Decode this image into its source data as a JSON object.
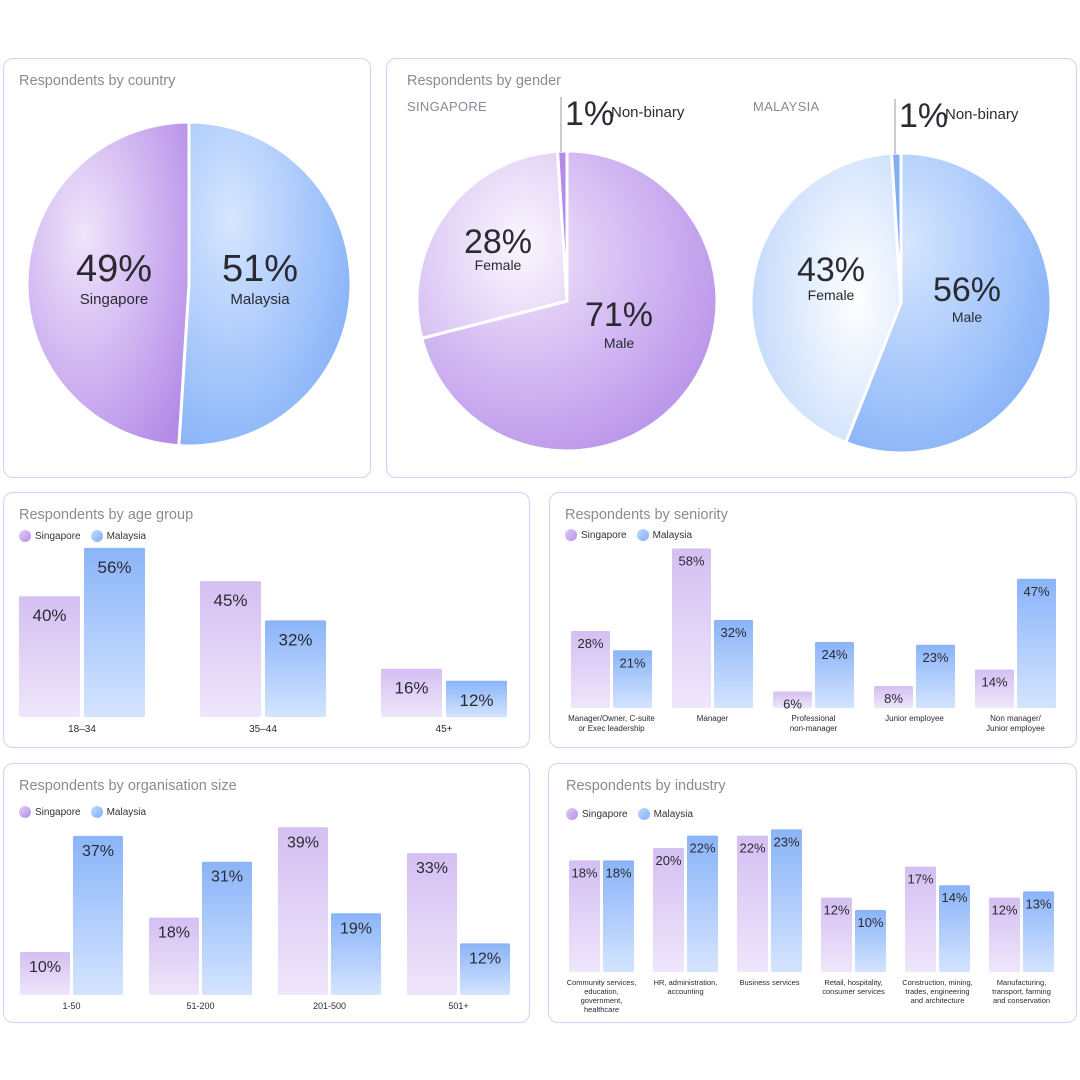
{
  "colors": {
    "singapore": "#b48ce8",
    "malaysia": "#80aef7",
    "card_border": "#c9d6f7"
  },
  "legend": {
    "singapore": "Singapore",
    "malaysia": "Malaysia"
  },
  "country": {
    "title": "Respondents by country",
    "slices": [
      {
        "pct": "49%",
        "label": "Singapore"
      },
      {
        "pct": "51%",
        "label": "Malaysia"
      }
    ]
  },
  "gender": {
    "title": "Respondents by gender",
    "sg_label": "SINGAPORE",
    "my_label": "MALAYSIA",
    "sg": {
      "male_pct": "71%",
      "male": "Male",
      "female_pct": "28%",
      "female": "Female",
      "nb_pct": "1%",
      "nb": "Non-binary"
    },
    "my": {
      "male_pct": "56%",
      "male": "Male",
      "female_pct": "43%",
      "female": "Female",
      "nb_pct": "1%",
      "nb": "Non-binary"
    }
  },
  "age": {
    "title": "Respondents by age group"
  },
  "seniority": {
    "title": "Respondents by seniority"
  },
  "orgsize": {
    "title": "Respondents by organisation size"
  },
  "industry": {
    "title": "Respondents by industry"
  },
  "chart_data": [
    {
      "type": "pie",
      "title": "Respondents by country",
      "categories": [
        "Singapore",
        "Malaysia"
      ],
      "values": [
        49,
        51
      ]
    },
    {
      "type": "pie",
      "title": "Respondents by gender",
      "subtitle": "SINGAPORE",
      "categories": [
        "Male",
        "Female",
        "Non-binary"
      ],
      "values": [
        71,
        28,
        1
      ]
    },
    {
      "type": "pie",
      "title": "Respondents by gender",
      "subtitle": "MALAYSIA",
      "categories": [
        "Male",
        "Female",
        "Non-binary"
      ],
      "values": [
        56,
        43,
        1
      ]
    },
    {
      "type": "bar",
      "title": "Respondents by age group",
      "categories": [
        "18–34",
        "35–44",
        "45+"
      ],
      "series": [
        {
          "name": "Singapore",
          "values": [
            40,
            45,
            16
          ]
        },
        {
          "name": "Malaysia",
          "values": [
            56,
            32,
            12
          ]
        }
      ]
    },
    {
      "type": "bar",
      "title": "Respondents by seniority",
      "categories": [
        "Manager/Owner, C-suite\nor Exec leadership",
        "Manager",
        "Professional\nnon-manager",
        "Junior employee",
        "Non manager/\nJunior employee"
      ],
      "series": [
        {
          "name": "Singapore",
          "values": [
            28,
            58,
            6,
            8,
            14
          ]
        },
        {
          "name": "Malaysia",
          "values": [
            21,
            32,
            24,
            23,
            47
          ]
        }
      ]
    },
    {
      "type": "bar",
      "title": "Respondents by organisation size",
      "categories": [
        "1-50",
        "51-200",
        "201-500",
        "501+"
      ],
      "series": [
        {
          "name": "Singapore",
          "values": [
            10,
            18,
            39,
            33
          ]
        },
        {
          "name": "Malaysia",
          "values": [
            37,
            31,
            19,
            12
          ]
        }
      ]
    },
    {
      "type": "bar",
      "title": "Respondents by industry",
      "categories": [
        "Community services,\neducation,\ngovernment,\nhealthcare",
        "HR, administration,\naccounting",
        "Business services",
        "Retail, hospitality,\nconsumer services",
        "Construction, mining,\ntrades, engineering\nand architecture",
        "Manufacturing,\ntransport, farming\nand conservation"
      ],
      "series": [
        {
          "name": "Singapore",
          "values": [
            18,
            20,
            22,
            12,
            17,
            12
          ]
        },
        {
          "name": "Malaysia",
          "values": [
            18,
            22,
            23,
            10,
            14,
            13
          ]
        }
      ]
    }
  ]
}
